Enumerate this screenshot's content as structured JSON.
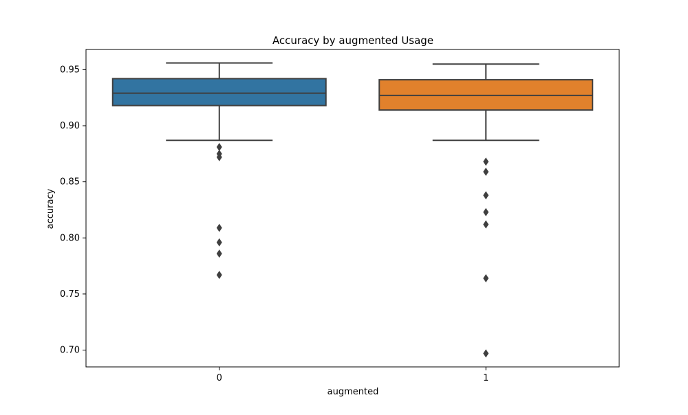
{
  "chart_data": {
    "type": "box",
    "title": "Accuracy by augmented Usage",
    "xlabel": "augmented",
    "ylabel": "accuracy",
    "categories": [
      "0",
      "1"
    ],
    "ylim": [
      0.685,
      0.968
    ],
    "yticks": [
      0.7,
      0.75,
      0.8,
      0.85,
      0.9,
      0.95
    ],
    "ytick_labels": [
      "0.70",
      "0.75",
      "0.80",
      "0.85",
      "0.90",
      "0.95"
    ],
    "grid": false,
    "legend": "none",
    "boxes": [
      {
        "category": "0",
        "color": "#3274a1",
        "whisker_low": 0.887,
        "q1": 0.918,
        "median": 0.929,
        "q3": 0.942,
        "whisker_high": 0.956,
        "outliers": [
          0.881,
          0.875,
          0.872,
          0.809,
          0.796,
          0.786,
          0.767
        ]
      },
      {
        "category": "1",
        "color": "#e1812c",
        "whisker_low": 0.887,
        "q1": 0.914,
        "median": 0.927,
        "q3": 0.941,
        "whisker_high": 0.955,
        "outliers": [
          0.868,
          0.859,
          0.838,
          0.823,
          0.812,
          0.764,
          0.697
        ]
      }
    ]
  }
}
